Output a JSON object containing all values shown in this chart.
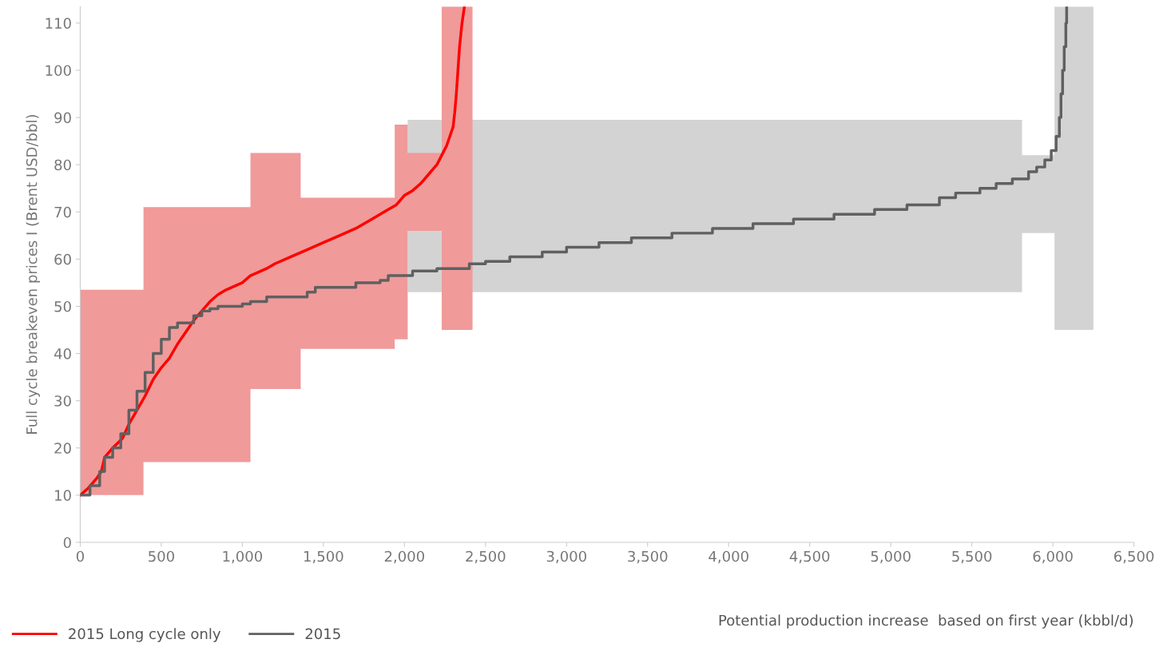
{
  "chart_data": {
    "type": "line",
    "xlabel": "Potential production increase  based on first year (kbbl/d)",
    "ylabel": "Full cycle breakeven prices I (Brent USD/bbl)",
    "xlim": [
      0,
      6500
    ],
    "ylim": [
      0,
      113.5
    ],
    "xticks": [
      0,
      500,
      {
        "value": 1000,
        "label": "1,000"
      },
      {
        "value": 1500,
        "label": "1,500"
      },
      {
        "value": 2000,
        "label": "2,000"
      },
      {
        "value": 2500,
        "label": "2,500"
      },
      {
        "value": 3000,
        "label": "3,000"
      },
      {
        "value": 3500,
        "label": "3,500"
      },
      {
        "value": 4000,
        "label": "4,000"
      },
      {
        "value": 4500,
        "label": "4,500"
      },
      {
        "value": 5000,
        "label": "5,000"
      },
      {
        "value": 5500,
        "label": "5,500"
      },
      {
        "value": 6000,
        "label": "6,000"
      },
      {
        "value": 6500,
        "label": "6,500"
      }
    ],
    "yticks": [
      0,
      10,
      20,
      30,
      40,
      50,
      60,
      70,
      80,
      90,
      100,
      110
    ],
    "grid": false,
    "legend": "bottom left",
    "marker": "none",
    "line_style": "solid",
    "series": [
      {
        "type": "step",
        "color": "#d3d3d3",
        "x": [
          2020,
          5810,
          6010,
          6250
        ],
        "lower": [
          53,
          65.5,
          45,
          45
        ],
        "upper": [
          89.5,
          82,
          113.5,
          113.5
        ],
        "values": [
          null,
          null,
          null,
          null
        ]
      },
      {
        "type": "step",
        "color": "#f09a9a",
        "x": [
          0,
          390,
          1050,
          1360,
          1940,
          2020,
          2230,
          2420
        ],
        "lower": [
          10,
          17,
          32.5,
          41,
          43,
          66,
          45,
          45
        ],
        "upper": [
          53.5,
          71,
          82.5,
          73,
          88.5,
          82.5,
          113.5,
          113.5
        ],
        "values": [
          null,
          null,
          null,
          null,
          null,
          null,
          null,
          null
        ]
      },
      {
        "name": "2015 Long cycle only",
        "color": "#ff0000",
        "x": [
          0,
          50,
          100,
          130,
          150,
          200,
          260,
          300,
          350,
          400,
          450,
          500,
          550,
          600,
          650,
          700,
          750,
          800,
          850,
          900,
          1000,
          1050,
          1150,
          1200,
          1300,
          1400,
          1500,
          1600,
          1700,
          1800,
          1900,
          1950,
          2000,
          2050,
          2100,
          2150,
          2200,
          2230,
          2260,
          2280,
          2300,
          2310,
          2320,
          2330,
          2340,
          2355,
          2370
        ],
        "values": [
          10,
          11.5,
          13.5,
          15,
          18,
          20,
          22,
          25,
          28,
          31,
          34.5,
          37,
          39,
          42,
          44.5,
          47,
          49,
          51,
          52.5,
          53.5,
          55,
          56.5,
          58,
          59,
          60.5,
          62,
          63.5,
          65,
          66.5,
          68.5,
          70.5,
          71.5,
          73.5,
          74.5,
          76,
          78,
          80,
          82,
          84,
          86,
          88,
          91,
          95,
          100,
          105,
          110,
          113.5
        ]
      },
      {
        "type": "step",
        "name": "2015",
        "color": "#606060",
        "x": [
          0,
          60,
          120,
          150,
          200,
          250,
          300,
          350,
          400,
          450,
          500,
          550,
          600,
          700,
          750,
          800,
          850,
          1000,
          1050,
          1150,
          1350,
          1400,
          1450,
          1650,
          1700,
          1850,
          1900,
          2000,
          2050,
          2200,
          2400,
          2500,
          2650,
          2850,
          3000,
          3200,
          3400,
          3650,
          3900,
          4150,
          4400,
          4650,
          4900,
          5100,
          5300,
          5400,
          5550,
          5650,
          5750,
          5850,
          5900,
          5950,
          5990,
          6020,
          6040,
          6050,
          6060,
          6070,
          6080,
          6085
        ],
        "values": [
          10,
          12,
          15,
          18,
          20,
          23,
          28,
          32,
          36,
          40,
          43,
          45.5,
          46.5,
          48,
          49,
          49.5,
          50,
          50.5,
          51,
          52,
          52,
          53,
          54,
          54,
          55,
          55.5,
          56.5,
          56.5,
          57.5,
          58,
          59,
          59.5,
          60.5,
          61.5,
          62.5,
          63.5,
          64.5,
          65.5,
          66.5,
          67.5,
          68.5,
          69.5,
          70.5,
          71.5,
          73,
          74,
          75,
          76,
          77,
          78.5,
          79.5,
          81,
          83,
          86,
          90,
          95,
          100,
          105,
          110,
          113.5
        ]
      }
    ]
  }
}
